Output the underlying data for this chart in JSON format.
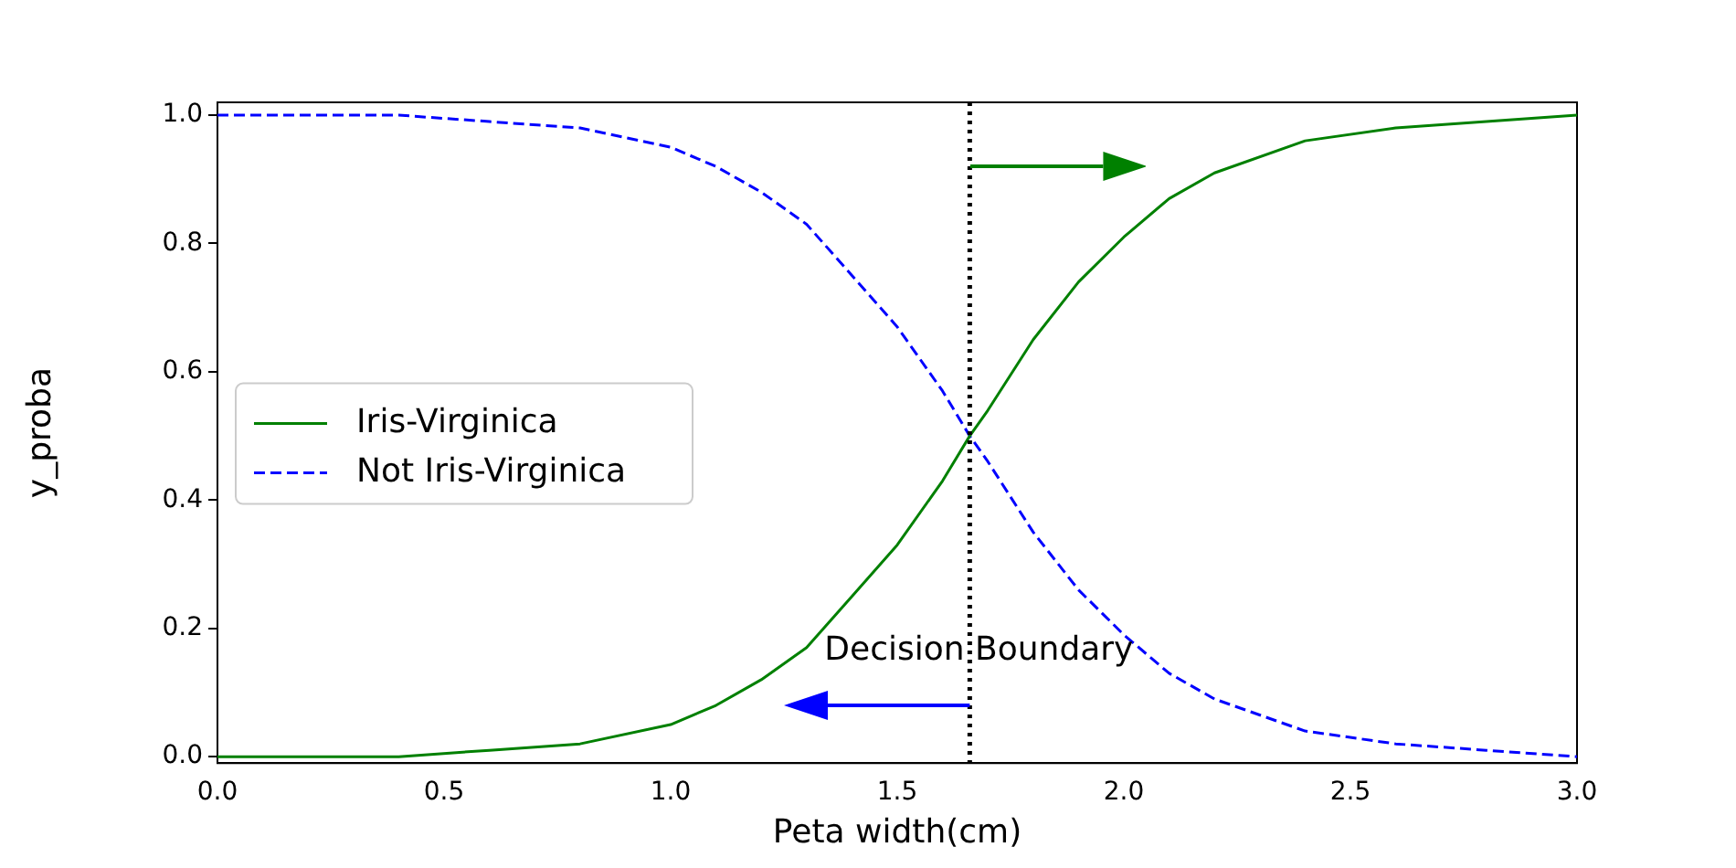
{
  "chart_data": {
    "type": "line",
    "xlabel": "Peta width(cm)",
    "ylabel": "y_proba",
    "x": [
      0,
      0.2,
      0.4,
      0.6,
      0.8,
      1.0,
      1.1,
      1.2,
      1.3,
      1.4,
      1.5,
      1.6,
      1.66,
      1.7,
      1.8,
      1.9,
      2.0,
      2.1,
      2.2,
      2.4,
      2.6,
      2.8,
      3.0
    ],
    "series": [
      {
        "name": "Iris-Virginica",
        "color": "#008000",
        "line_style": "solid",
        "values": [
          0,
          0,
          0,
          0.01,
          0.02,
          0.05,
          0.08,
          0.12,
          0.17,
          0.25,
          0.33,
          0.43,
          0.5,
          0.54,
          0.65,
          0.74,
          0.81,
          0.87,
          0.91,
          0.96,
          0.98,
          0.99,
          1
        ]
      },
      {
        "name": "Not Iris-Virginica",
        "color": "#0000ff",
        "line_style": "dashed",
        "values": [
          1,
          1,
          1,
          0.99,
          0.98,
          0.95,
          0.92,
          0.88,
          0.83,
          0.75,
          0.67,
          0.57,
          0.5,
          0.46,
          0.35,
          0.26,
          0.19,
          0.13,
          0.09,
          0.04,
          0.02,
          0.01,
          0
        ]
      }
    ],
    "xlim": [
      0,
      3
    ],
    "xticks": [
      {
        "value": 0,
        "label": "0.0"
      },
      0.5,
      {
        "value": 1,
        "label": "1.0"
      },
      1.5,
      {
        "value": 2,
        "label": "2.0"
      },
      2.5,
      {
        "value": 3,
        "label": "3.0"
      }
    ],
    "ylim": [
      -0.01,
      1.02
    ],
    "yticks": [
      {
        "value": 0,
        "label": "0.0"
      },
      0.2,
      0.4,
      0.6,
      0.8,
      {
        "value": 1,
        "label": "1.0"
      }
    ],
    "grid": false,
    "legend": "left",
    "marker": "none",
    "ref_lines": [
      {
        "axis": "x",
        "value": 1.66,
        "label": "Decision Boundary",
        "color": "#000000",
        "line_style": "dotted"
      }
    ]
  }
}
